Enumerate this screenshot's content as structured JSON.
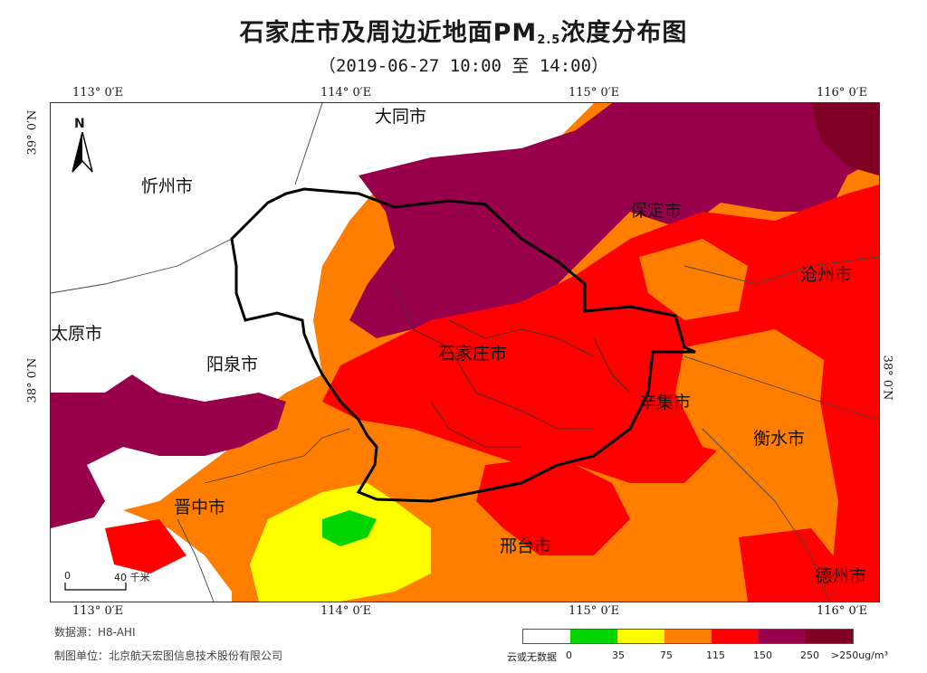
{
  "title": "石家庄市及周边近地面PM",
  "title_sub": "2.5",
  "title_tail": "浓度分布图",
  "subtitle": "（2019-06-27 10:00 至 14:00）",
  "lon_labels": [
    "113° 0′E",
    "114° 0′E",
    "115° 0′E",
    "116° 0′E"
  ],
  "lat_labels": [
    "39° 0′N",
    "38° 0′N"
  ],
  "north_label": "N",
  "scale": {
    "start": "0",
    "end": "40 千米"
  },
  "cities": {
    "datong": "大同市",
    "xinzhou": "忻州市",
    "baoding": "保定市",
    "cangzhou": "沧州市",
    "taiyuan": "太原市",
    "yangquan": "阳泉市",
    "shijiazhuang": "石家庄市",
    "xinji": "辛集市",
    "hengshui": "衡水市",
    "jinzhong": "晋中市",
    "xingtai": "邢台市",
    "dezhou": "德州市"
  },
  "footer": {
    "source": "数据源：H8-AHI",
    "producer": "制图单位：北京航天宏图信息技术股份有限公司"
  },
  "legend": {
    "nodata": "云或无数据",
    "breaks": [
      "0",
      "35",
      "75",
      "115",
      "150",
      "250",
      ">250ug/m³"
    ],
    "colors": [
      "#ffffff",
      "#00d400",
      "#ffff00",
      "#ff7e00",
      "#ff0000",
      "#99004c",
      "#7e0023"
    ]
  }
}
